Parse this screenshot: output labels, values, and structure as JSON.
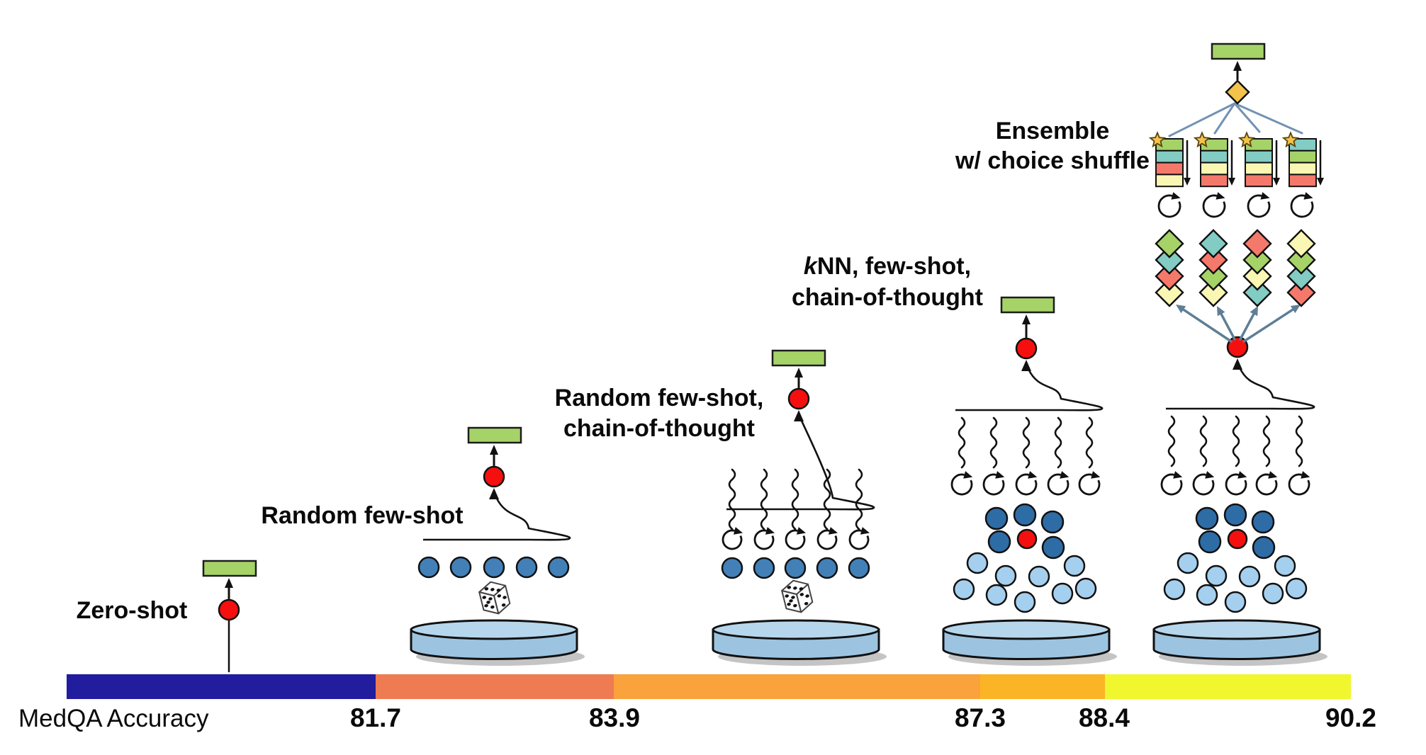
{
  "axis": {
    "label": "MedQA Accuracy",
    "values": [
      "81.7",
      "83.9",
      "87.3",
      "88.4",
      "90.2"
    ]
  },
  "stages": [
    {
      "name": "zero-shot",
      "label": "Zero-shot"
    },
    {
      "name": "random-few-shot",
      "label": "Random few-shot"
    },
    {
      "name": "random-few-shot-cot",
      "label_line1": "Random few-shot,",
      "label_line2": "chain-of-thought"
    },
    {
      "name": "knn-few-shot-cot",
      "label_italic": "k",
      "label_rest": "NN, few-shot,",
      "label_line2": "chain-of-thought"
    },
    {
      "name": "ensemble-choice-shuffle",
      "label_line1": "Ensemble",
      "label_line2": "w/ choice shuffle"
    }
  ],
  "chart_data": {
    "type": "bar",
    "title": "MedQA Accuracy",
    "xlabel": "MedQA Accuracy",
    "categories": [
      "Zero-shot",
      "Random few-shot",
      "Random few-shot, chain-of-thought",
      "kNN, few-shot, chain-of-thought",
      "Ensemble w/ choice shuffle"
    ],
    "values": [
      81.7,
      83.9,
      87.3,
      88.4,
      90.2
    ],
    "segment_colors": [
      "#211D9E",
      "#EE7B52",
      "#FAA23C",
      "#FBB425",
      "#F0F72E"
    ],
    "notes": "Horizontal accuracy scale; each colored segment ends at the accuracy reached by the corresponding prompting stage."
  },
  "palette": {
    "green_box": "#A6D368",
    "teal": "#82CCC4",
    "salmon": "#F5796B",
    "pale_yellow": "#FAF7B4",
    "gold": "#F3C34C",
    "red_node": "#F50F0F",
    "steel_circle": "#4380B8",
    "dark_blue_circle": "#2E6CA6",
    "light_blue_circle": "#A5CFEE",
    "cylinder_top": "#B6D6EC",
    "cylinder_body": "#9CC4E0",
    "slate_arrow": "#5E7E95",
    "fan_line": "#7292B2",
    "shadow": "#C4C4C4",
    "ink": "#111111"
  }
}
